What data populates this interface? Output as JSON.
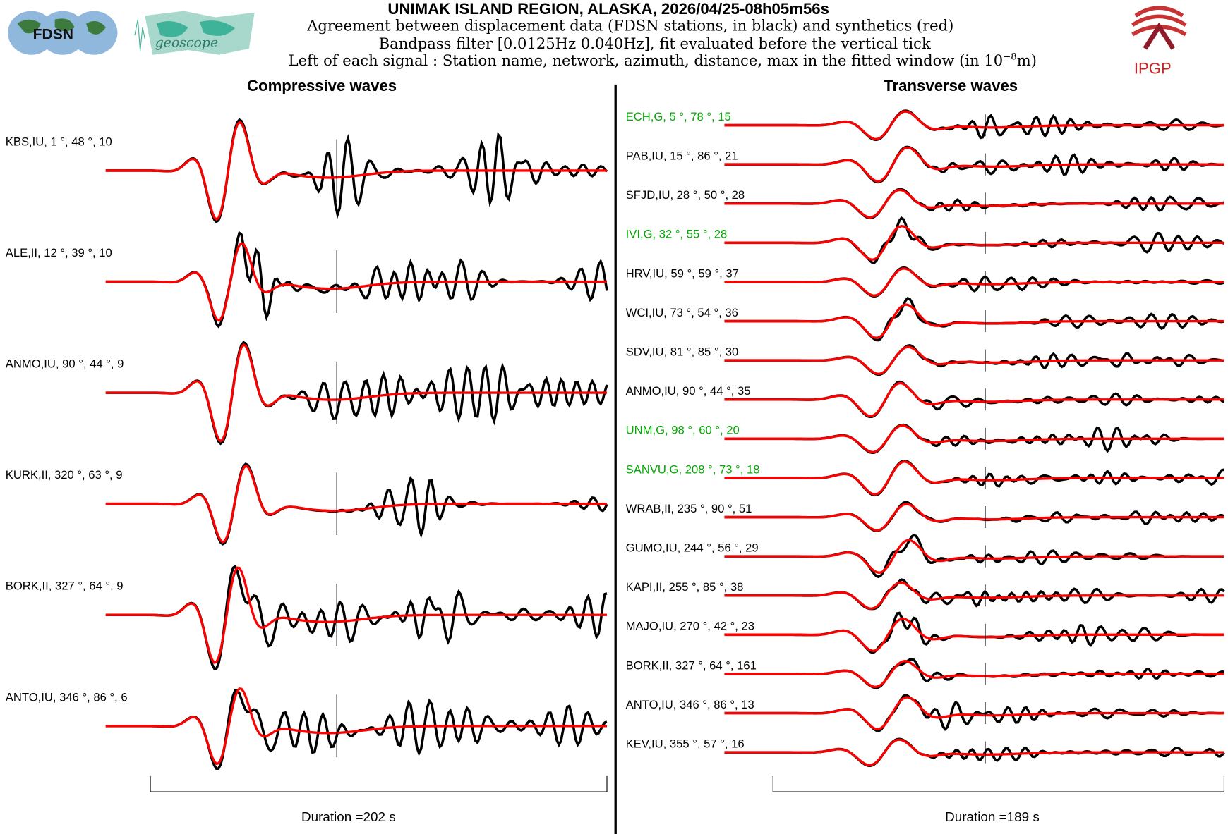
{
  "header": {
    "title": "UNIMAK ISLAND REGION, ALASKA, 2026/04/25-08h05m56s",
    "line1": "Agreement between displacement data (FDSN stations, in black) and synthetics (red)",
    "line2": "Bandpass filter [0.0125Hz 0.040Hz], fit evaluated before the vertical tick",
    "line3": "Left of each signal : Station name, network, azimuth, distance, max in the fitted window (in 10",
    "line3_sup": "−8",
    "line3_end": "m)",
    "logos": {
      "fdsn": "FDSN",
      "geoscope": "geoscope",
      "ipgp": "IPGP"
    }
  },
  "colors": {
    "data": "#000000",
    "synthetic": "#ff0000",
    "geoscope_label": "#00aa00"
  },
  "chart_data": [
    {
      "type": "line",
      "title": "Compressive waves",
      "duration_label": "Duration =202 s",
      "duration_s": 202,
      "series_legend": [
        "data (black)",
        "synthetics (red)"
      ],
      "stations": [
        {
          "label": "KBS,IU, 1 °, 48 °, 10",
          "network": "IU",
          "azimuth": 1,
          "distance": 48,
          "max": 10,
          "green": false
        },
        {
          "label": "ALE,II, 12 °, 39 °, 10",
          "network": "II",
          "azimuth": 12,
          "distance": 39,
          "max": 10,
          "green": false
        },
        {
          "label": "ANMO,IU, 90 °, 44 °, 9",
          "network": "IU",
          "azimuth": 90,
          "distance": 44,
          "max": 9,
          "green": false
        },
        {
          "label": "KURK,II, 320 °, 63 °, 9",
          "network": "II",
          "azimuth": 320,
          "distance": 63,
          "max": 9,
          "green": false
        },
        {
          "label": "BORK,II, 327 °, 64 °, 9",
          "network": "II",
          "azimuth": 327,
          "distance": 64,
          "max": 9,
          "green": false
        },
        {
          "label": "ANTO,IU, 346 °, 86 °, 6",
          "network": "IU",
          "azimuth": 346,
          "distance": 86,
          "max": 6,
          "green": false
        }
      ]
    },
    {
      "type": "line",
      "title": "Transverse waves",
      "duration_label": "Duration =189 s",
      "duration_s": 189,
      "series_legend": [
        "data (black)",
        "synthetics (red)"
      ],
      "stations": [
        {
          "label": "ECH,G, 5 °, 78 °, 15",
          "azimuth": 5,
          "distance": 78,
          "max": 15,
          "green": true
        },
        {
          "label": "PAB,IU, 15 °, 86 °, 21",
          "azimuth": 15,
          "distance": 86,
          "max": 21,
          "green": false
        },
        {
          "label": "SFJD,IU, 28 °, 50 °, 28",
          "azimuth": 28,
          "distance": 50,
          "max": 28,
          "green": false
        },
        {
          "label": "IVI,G, 32 °, 55 °, 28",
          "azimuth": 32,
          "distance": 55,
          "max": 28,
          "green": true
        },
        {
          "label": "HRV,IU, 59 °, 59 °, 37",
          "azimuth": 59,
          "distance": 59,
          "max": 37,
          "green": false
        },
        {
          "label": "WCI,IU, 73 °, 54 °, 36",
          "azimuth": 73,
          "distance": 54,
          "max": 36,
          "green": false
        },
        {
          "label": "SDV,IU, 81 °, 85 °, 30",
          "azimuth": 81,
          "distance": 85,
          "max": 30,
          "green": false
        },
        {
          "label": "ANMO,IU, 90 °, 44 °, 35",
          "azimuth": 90,
          "distance": 44,
          "max": 35,
          "green": false
        },
        {
          "label": "UNM,G, 98 °, 60 °, 20",
          "azimuth": 98,
          "distance": 60,
          "max": 20,
          "green": true
        },
        {
          "label": "SANVU,G, 208 °, 73 °, 18",
          "azimuth": 208,
          "distance": 73,
          "max": 18,
          "green": true
        },
        {
          "label": "WRAB,II, 235 °, 90 °, 51",
          "azimuth": 235,
          "distance": 90,
          "max": 51,
          "green": false
        },
        {
          "label": "GUMO,IU, 244 °, 56 °, 29",
          "azimuth": 244,
          "distance": 56,
          "max": 29,
          "green": false
        },
        {
          "label": "KAPI,II, 255 °, 85 °, 38",
          "azimuth": 255,
          "distance": 85,
          "max": 38,
          "green": false
        },
        {
          "label": "MAJO,IU, 270 °, 42 °, 23",
          "azimuth": 270,
          "distance": 42,
          "max": 23,
          "green": false
        },
        {
          "label": "BORK,II, 327 °, 64 °, 161",
          "azimuth": 327,
          "distance": 64,
          "max": 161,
          "green": false
        },
        {
          "label": "ANTO,IU, 346 °, 86 °, 13",
          "azimuth": 346,
          "distance": 86,
          "max": 13,
          "green": false
        },
        {
          "label": "KEV,IU, 355 °, 57 °, 16",
          "azimuth": 355,
          "distance": 57,
          "max": 16,
          "green": false
        }
      ]
    }
  ]
}
